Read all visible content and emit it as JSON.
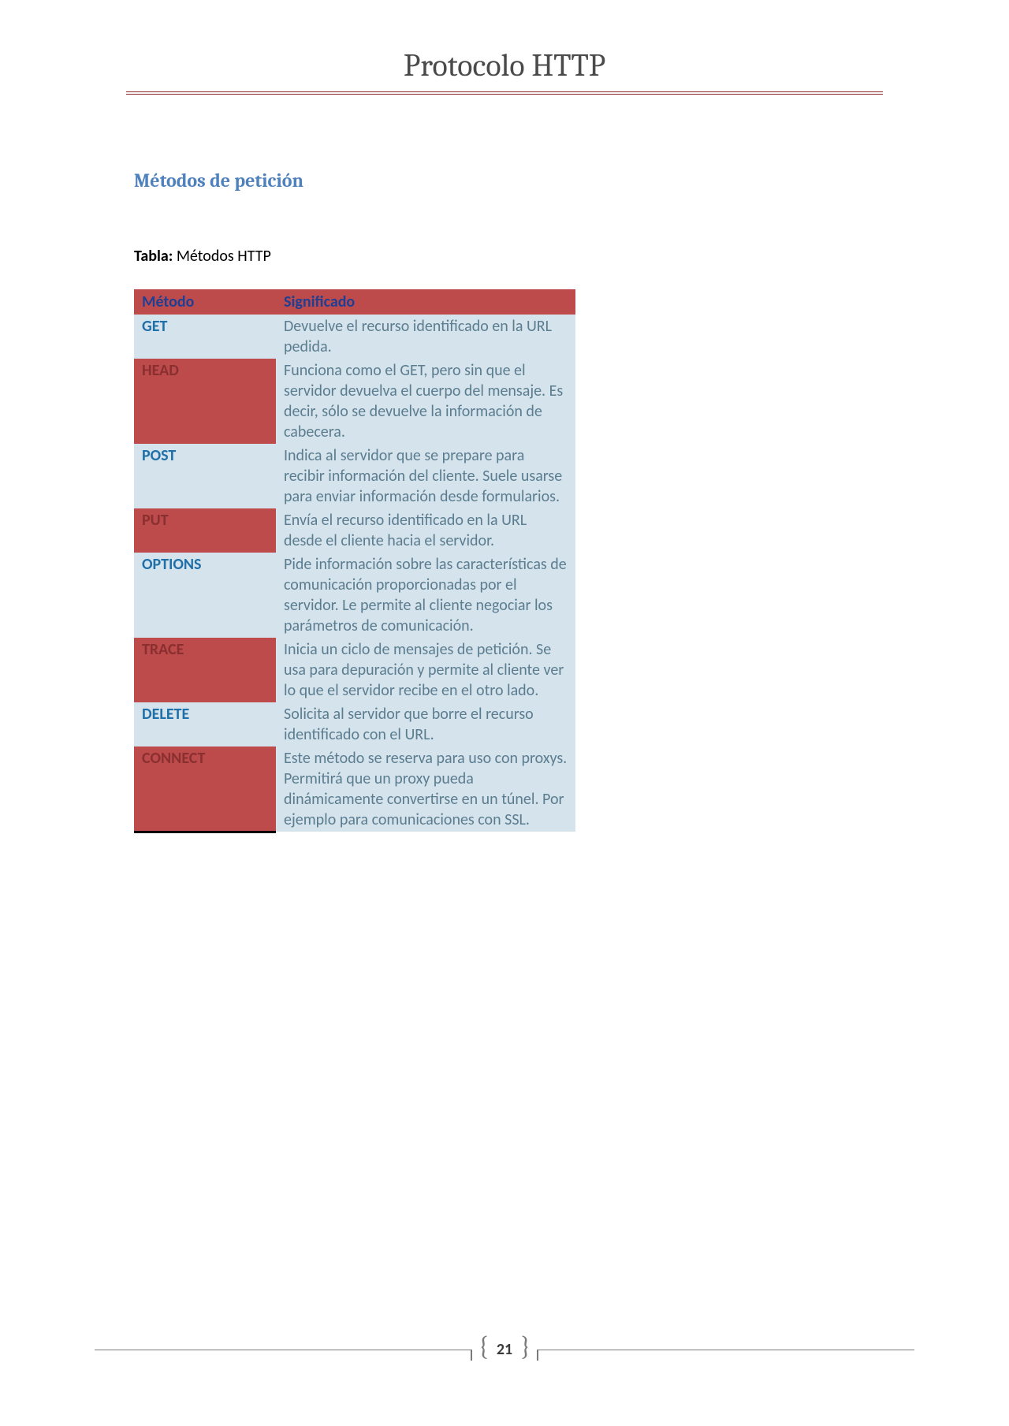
{
  "document": {
    "title": "Protocolo HTTP",
    "section_heading": "Métodos de petición",
    "table_caption_label": "Tabla:",
    "table_caption_text": " Métodos HTTP",
    "page_number": "21"
  },
  "table": {
    "headers": {
      "method": "Método",
      "meaning": "Significado"
    },
    "rows": [
      {
        "style": "light",
        "method": "GET",
        "desc": "Devuelve el recurso identificado en la URL pedida."
      },
      {
        "style": "dark",
        "method": "HEAD",
        "desc": "Funciona como el GET, pero sin que el servidor devuelva el cuerpo del mensaje. Es decir, sólo se devuelve la información de cabecera."
      },
      {
        "style": "light",
        "method": "POST",
        "desc": "Indica al servidor que se prepare para recibir información del cliente. Suele usarse para enviar información desde formularios."
      },
      {
        "style": "dark",
        "method": "PUT",
        "desc": "Envía el recurso identificado en la URL desde el cliente hacia el servidor."
      },
      {
        "style": "light",
        "method": "OPTIONS",
        "desc": "Pide información sobre las características de comunicación proporcionadas por el servidor. Le permite al cliente negociar los parámetros de comunicación."
      },
      {
        "style": "dark",
        "method": "TRACE",
        "desc": "Inicia un ciclo de mensajes de petición. Se usa para depuración y permite al cliente ver lo que el servidor recibe en el otro lado."
      },
      {
        "style": "light",
        "method": "DELETE",
        "desc": "Solicita al servidor que borre el recurso identificado con el URL."
      },
      {
        "style": "dark",
        "method": "CONNECT",
        "desc": "Este método se reserva para uso con proxys. Permitirá que un proxy pueda dinámicamente convertirse en un túnel. Por ejemplo para comunicaciones con SSL."
      }
    ]
  },
  "colors": {
    "title_text": "#4a4a4a",
    "title_rule": "#8b2b2b",
    "heading_text": "#4f81bd",
    "header_bg": "#bd4b4b",
    "header_text": "#1f3f94",
    "light_bg": "#d5e3ec",
    "light_method_text": "#1f6fa8",
    "desc_text": "#5b7d8f",
    "dark_method_bg": "#bd4b4b",
    "dark_method_text": "#8a2f2f",
    "footer_line": "#7a7a7a"
  }
}
